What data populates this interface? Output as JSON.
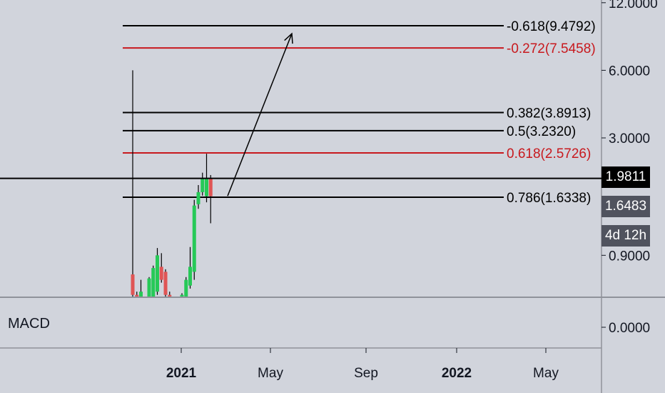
{
  "colors": {
    "background": "#d1d4dc",
    "up_candle": "#26c957",
    "down_candle": "#e05555",
    "fib_black": "#000000",
    "fib_red": "#c8191e",
    "axis_text": "#131722",
    "current_price_bg": "#000000",
    "last_price_bg": "#50535e",
    "countdown_bg": "#50535e"
  },
  "price_axis": {
    "ticks": [
      "12.0000",
      "6.0000",
      "3.0000",
      "0.9000"
    ],
    "current_price": "1.9811",
    "last_price": "1.6483",
    "countdown": "4d 12h"
  },
  "macd_pane": {
    "label": "MACD",
    "tick": "0.0000"
  },
  "time_axis": {
    "ticks": [
      "2021",
      "May",
      "Sep",
      "2022",
      "May"
    ]
  },
  "chart_data": {
    "type": "candlestick",
    "scale": "log",
    "fib_levels": [
      {
        "label": "-0.618(9.4792)",
        "ratio": -0.618,
        "price": 9.4792,
        "color": "black"
      },
      {
        "label": "-0.272(7.5458)",
        "ratio": -0.272,
        "price": 7.5458,
        "color": "red"
      },
      {
        "label": "0.382(3.8913)",
        "ratio": 0.382,
        "price": 3.8913,
        "color": "black"
      },
      {
        "label": "0.5(3.2320)",
        "ratio": 0.5,
        "price": 3.232,
        "color": "black"
      },
      {
        "label": "0.618(2.5726)",
        "ratio": 0.618,
        "price": 2.5726,
        "color": "red"
      },
      {
        "label": "0.786(1.6338)",
        "ratio": 0.786,
        "price": 1.6338,
        "color": "black"
      }
    ],
    "projection_arrow": {
      "from_price": 1.63,
      "to_price": 9.0
    },
    "candles": [
      {
        "o": 0.74,
        "h": 6.0,
        "l": 0.42,
        "c": 0.6
      },
      {
        "o": 0.6,
        "h": 0.62,
        "l": 0.48,
        "c": 0.5
      },
      {
        "o": 0.55,
        "h": 0.7,
        "l": 0.46,
        "c": 0.62
      },
      {
        "o": 0.52,
        "h": 0.56,
        "l": 0.5,
        "c": 0.53
      },
      {
        "o": 0.49,
        "h": 0.72,
        "l": 0.48,
        "c": 0.71
      },
      {
        "o": 0.55,
        "h": 0.81,
        "l": 0.5,
        "c": 0.79
      },
      {
        "o": 0.62,
        "h": 0.97,
        "l": 0.6,
        "c": 0.9
      },
      {
        "o": 0.8,
        "h": 0.92,
        "l": 0.68,
        "c": 0.7
      },
      {
        "o": 0.76,
        "h": 0.78,
        "l": 0.52,
        "c": 0.6
      },
      {
        "o": 0.6,
        "h": 0.62,
        "l": 0.5,
        "c": 0.52
      },
      {
        "o": 0.48,
        "h": 0.58,
        "l": 0.44,
        "c": 0.51
      },
      {
        "o": 0.51,
        "h": 0.56,
        "l": 0.47,
        "c": 0.53
      },
      {
        "o": 0.54,
        "h": 0.61,
        "l": 0.52,
        "c": 0.6
      },
      {
        "o": 0.58,
        "h": 0.72,
        "l": 0.55,
        "c": 0.7
      },
      {
        "o": 0.66,
        "h": 0.98,
        "l": 0.64,
        "c": 0.8
      },
      {
        "o": 0.76,
        "h": 1.59,
        "l": 0.7,
        "c": 1.5
      },
      {
        "o": 1.52,
        "h": 1.85,
        "l": 1.45,
        "c": 1.72
      },
      {
        "o": 1.72,
        "h": 2.1,
        "l": 1.66,
        "c": 1.98
      },
      {
        "o": 1.65,
        "h": 2.55,
        "l": 1.55,
        "c": 1.98
      },
      {
        "o": 1.98,
        "h": 2.05,
        "l": 1.25,
        "c": 1.65
      }
    ]
  }
}
